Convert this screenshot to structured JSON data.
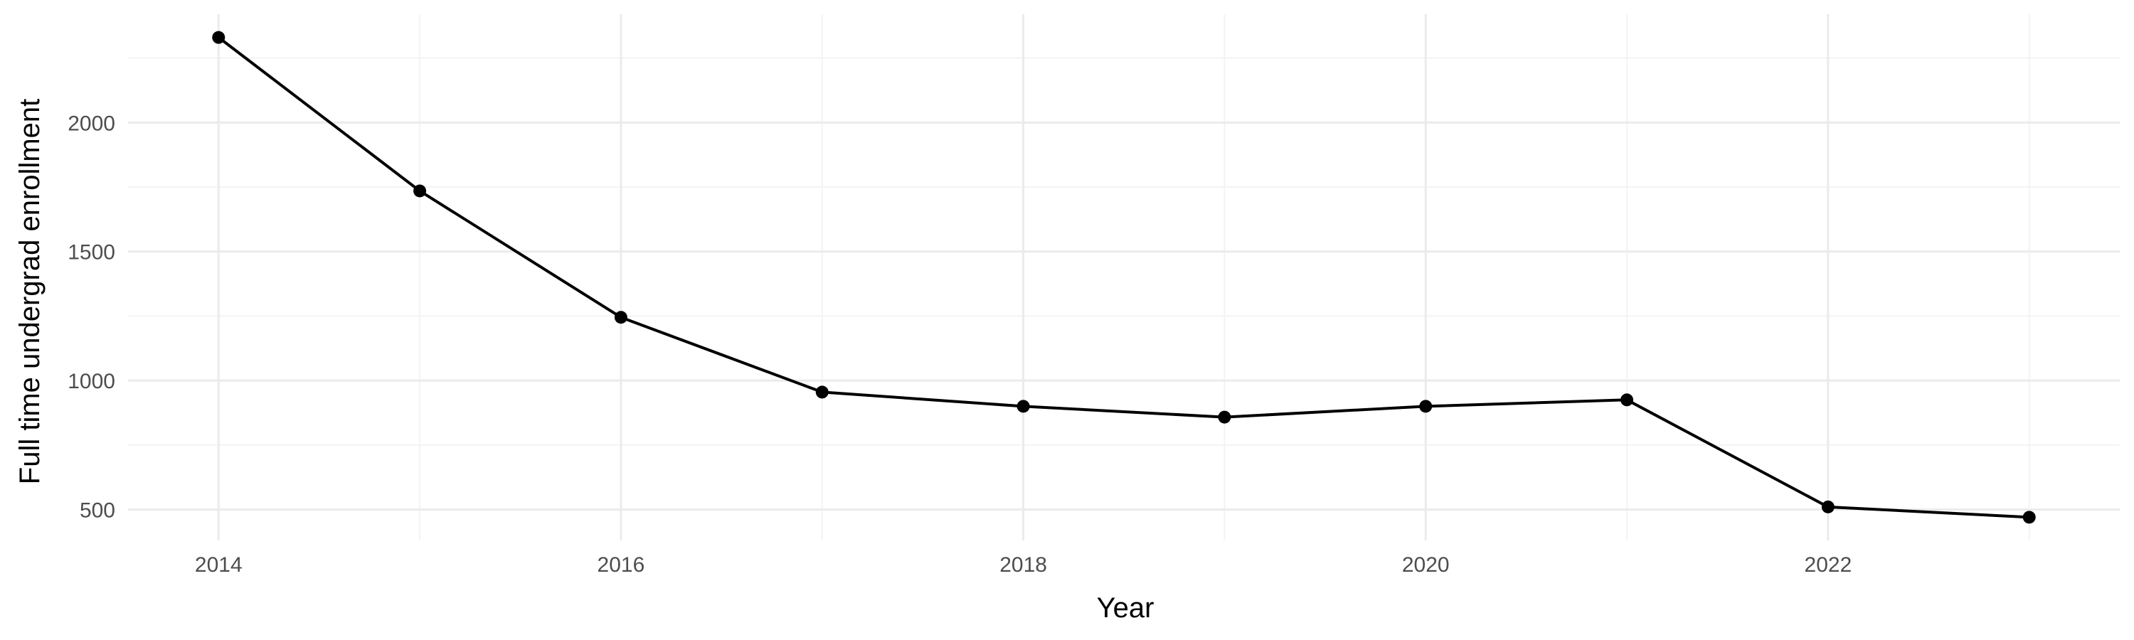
{
  "chart_data": {
    "type": "line",
    "title": "",
    "xlabel": "Year",
    "ylabel": "Full time undergrad enrollment",
    "x": [
      2014,
      2015,
      2016,
      2017,
      2018,
      2019,
      2020,
      2021,
      2022,
      2023
    ],
    "series": [
      {
        "values": [
          2330,
          1735,
          1245,
          955,
          900,
          858,
          900,
          925,
          510,
          470
        ]
      }
    ],
    "x_ticks": [
      2014,
      2016,
      2018,
      2020,
      2022
    ],
    "y_ticks": [
      500,
      1000,
      1500,
      2000
    ],
    "xlim": [
      2013.55,
      2023.45
    ],
    "ylim": [
      380,
      2420
    ],
    "grid": true,
    "legend": "none",
    "colors": {
      "line": "#000000",
      "point": "#000000",
      "grid": "#ebebeb"
    }
  }
}
